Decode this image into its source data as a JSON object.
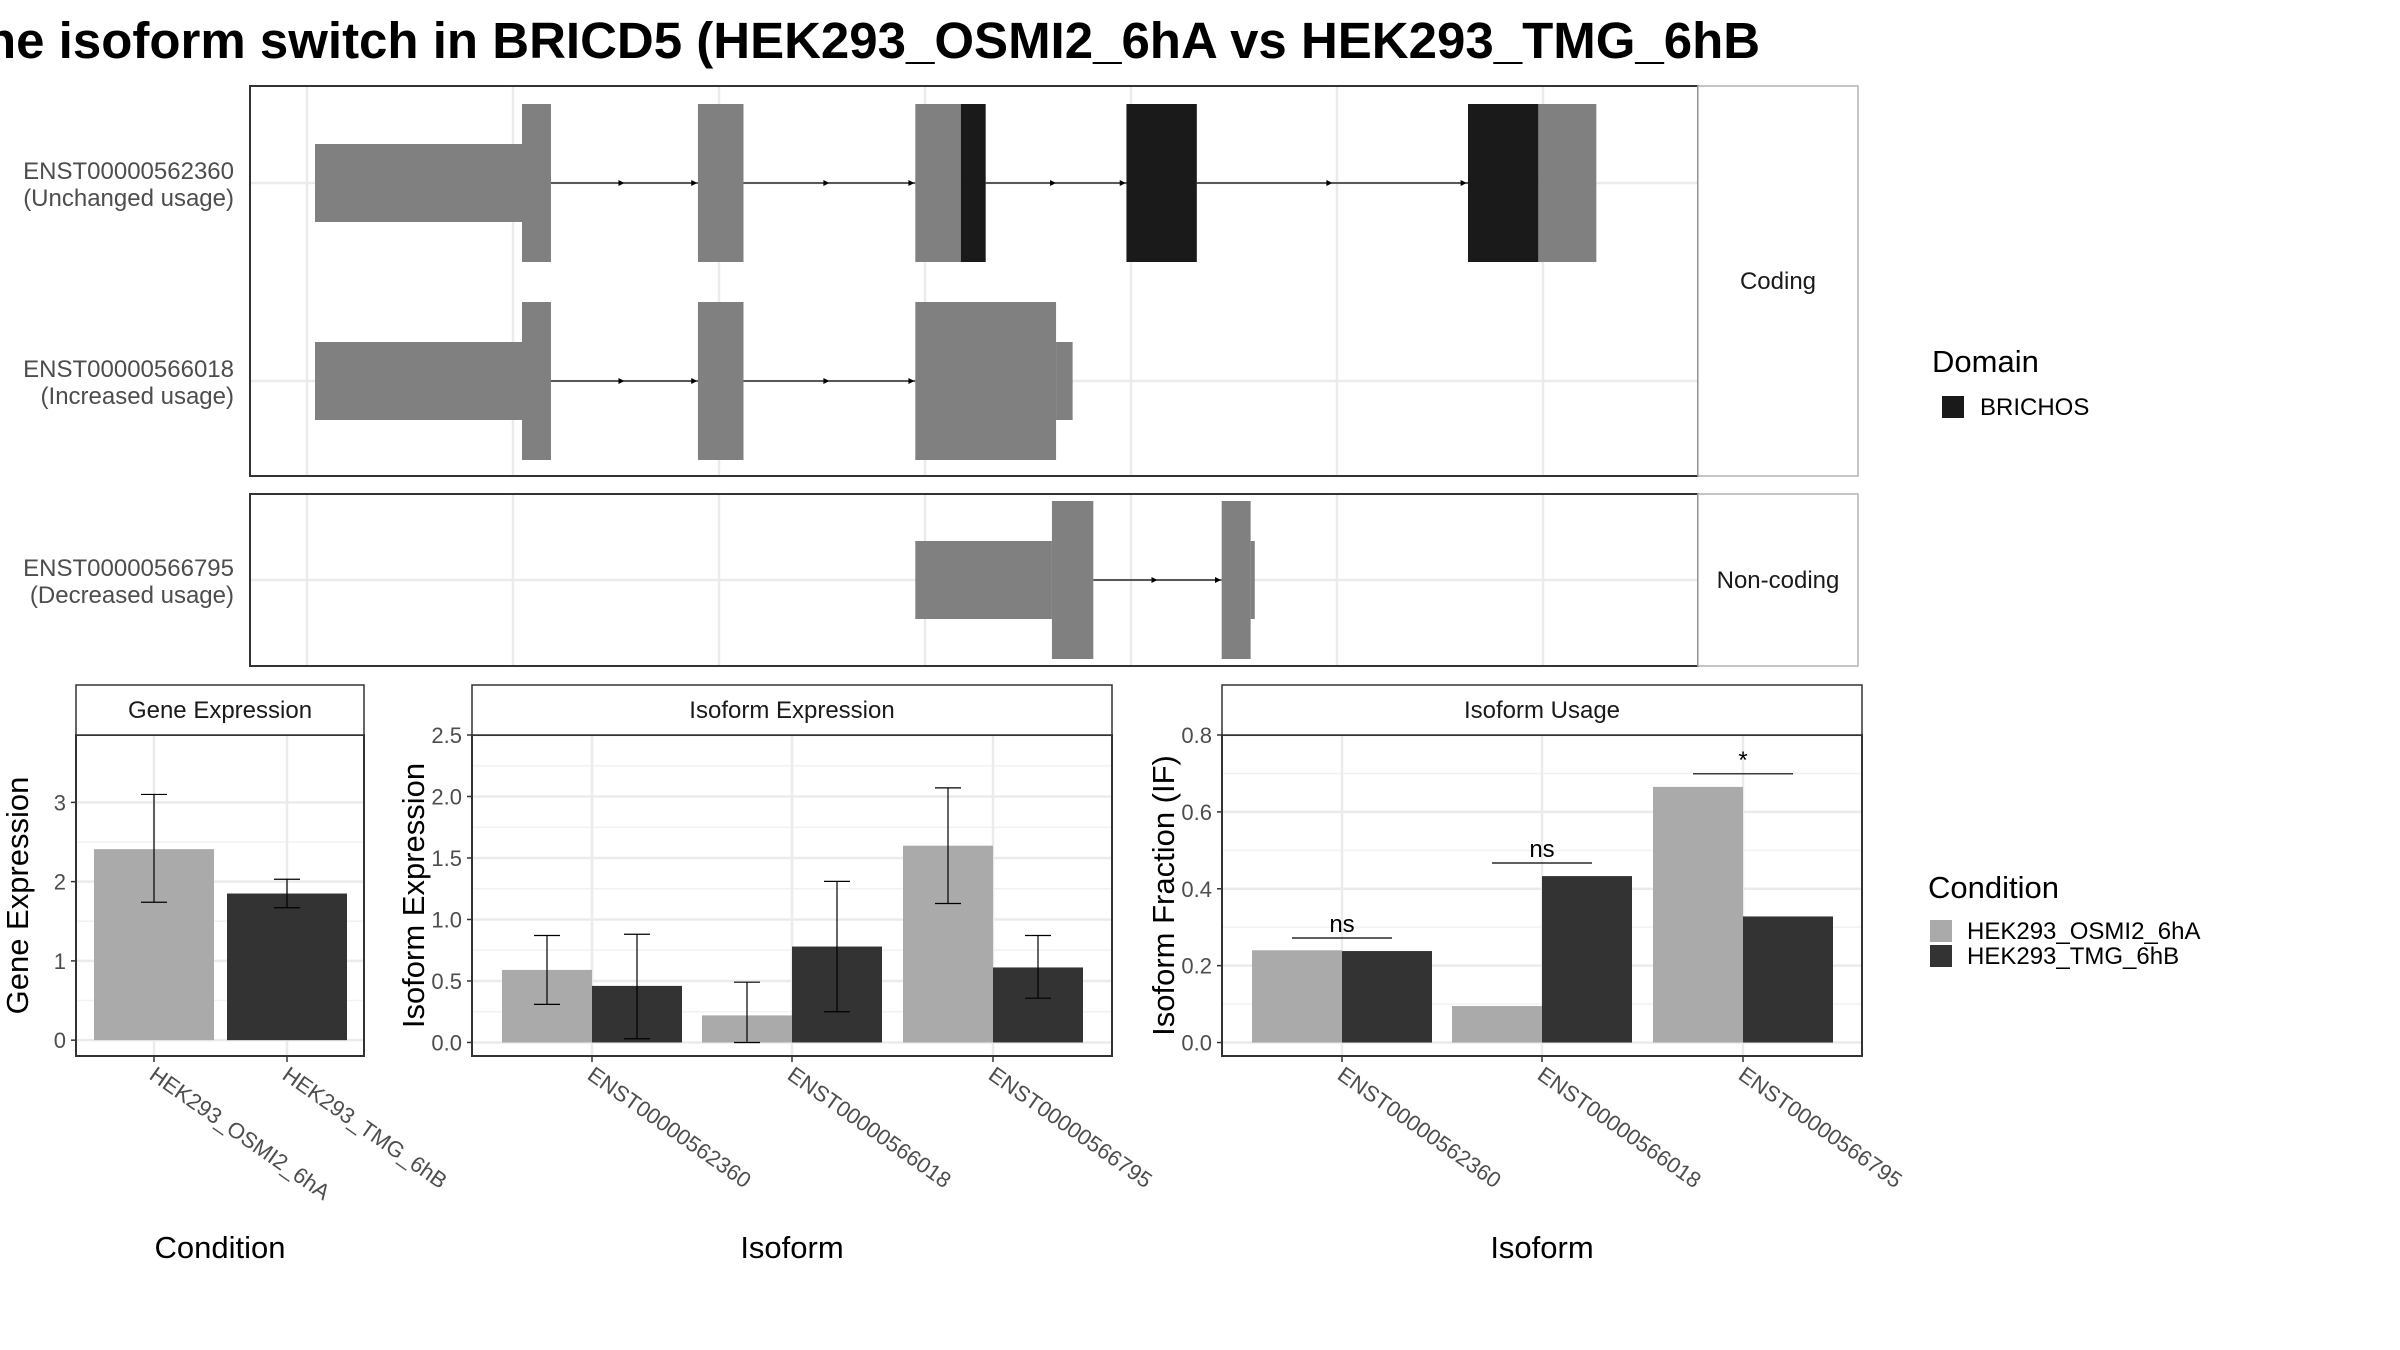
{
  "title": "ne isoform switch in BRICD5 (HEK293_OSMI2_6hA vs HEK293_TMG_6hB",
  "colors": {
    "domain_brichos": "#1a1a1a",
    "exon": "#808080",
    "condition_a": "#aaaaaa",
    "condition_b": "#333333",
    "grid": "#ebebeb",
    "strip_bg": "#ffffff",
    "panel_border": "#333333"
  },
  "transcript_panels": [
    {
      "strip": "Coding",
      "transcripts": [
        {
          "id": "ENST00000562360",
          "usage": "(Unchanged usage)",
          "segments": [
            {
              "start": 0.0,
              "end": 2.0,
              "kind": "utr"
            },
            {
              "start": 2.0,
              "end": 2.28,
              "kind": "cds"
            },
            {
              "start": 3.7,
              "end": 4.14,
              "kind": "cds"
            },
            {
              "start": 5.8,
              "end": 6.24,
              "kind": "cds"
            },
            {
              "start": 6.24,
              "end": 6.48,
              "kind": "cds",
              "domain": "BRICHOS"
            },
            {
              "start": 7.84,
              "end": 8.52,
              "kind": "cds",
              "domain": "BRICHOS"
            },
            {
              "start": 11.14,
              "end": 11.82,
              "kind": "cds",
              "domain": "BRICHOS"
            },
            {
              "start": 11.82,
              "end": 12.38,
              "kind": "cds"
            }
          ]
        },
        {
          "id": "ENST00000566018",
          "usage": "(Increased usage)",
          "segments": [
            {
              "start": 0.0,
              "end": 2.0,
              "kind": "utr"
            },
            {
              "start": 2.0,
              "end": 2.28,
              "kind": "cds"
            },
            {
              "start": 3.7,
              "end": 4.14,
              "kind": "cds"
            },
            {
              "start": 5.8,
              "end": 7.16,
              "kind": "cds"
            },
            {
              "start": 7.16,
              "end": 7.32,
              "kind": "utr"
            }
          ]
        }
      ]
    },
    {
      "strip": "Non-coding",
      "transcripts": [
        {
          "id": "ENST00000566795",
          "usage": "(Decreased usage)",
          "segments": [
            {
              "start": 5.8,
              "end": 7.12,
              "kind": "utr"
            },
            {
              "start": 7.12,
              "end": 7.52,
              "kind": "cds"
            },
            {
              "start": 8.76,
              "end": 9.04,
              "kind": "cds"
            },
            {
              "start": 9.04,
              "end": 9.08,
              "kind": "utr"
            }
          ]
        }
      ]
    }
  ],
  "legend_domain": {
    "title": "Domain",
    "items": [
      {
        "label": "BRICHOS"
      }
    ]
  },
  "legend_condition": {
    "title": "Condition",
    "items": [
      {
        "label": "HEK293_OSMI2_6hA"
      },
      {
        "label": "HEK293_TMG_6hB"
      }
    ]
  },
  "chart_data": [
    {
      "type": "bar",
      "title": "Gene Expression",
      "xlabel": "Condition",
      "ylabel": "Gene Expression",
      "ylim": [
        -0.2,
        3.85
      ],
      "yticks": [
        "0",
        "1",
        "2",
        "3"
      ],
      "categories": [
        "HEK293_OSMI2_6hA",
        "HEK293_TMG_6hB"
      ],
      "series": [
        {
          "values": [
            2.41,
            1.85
          ],
          "err_low": [
            1.74,
            1.67
          ],
          "err_high": [
            3.1,
            2.03
          ]
        }
      ]
    },
    {
      "type": "bar",
      "title": "Isoform Expression",
      "xlabel": "Isoform",
      "ylabel": "Isoform Expression",
      "ylim": [
        -0.11,
        2.5
      ],
      "yticks": [
        "0.0",
        "0.5",
        "1.0",
        "1.5",
        "2.0",
        "2.5"
      ],
      "categories": [
        "ENST00000562360",
        "ENST00000566018",
        "ENST00000566795"
      ],
      "series": [
        {
          "name": "HEK293_OSMI2_6hA",
          "values": [
            0.59,
            0.22,
            1.6
          ],
          "err_low": [
            0.31,
            0.0,
            1.13
          ],
          "err_high": [
            0.87,
            0.49,
            2.07
          ]
        },
        {
          "name": "HEK293_TMG_6hB",
          "values": [
            0.46,
            0.78,
            0.61
          ],
          "err_low": [
            0.03,
            0.25,
            0.36
          ],
          "err_high": [
            0.88,
            1.31,
            0.87
          ]
        }
      ]
    },
    {
      "type": "bar",
      "title": "Isoform Usage",
      "xlabel": "Isoform",
      "ylabel": "Isoform Fraction (IF)",
      "ylim": [
        -0.035,
        0.8
      ],
      "yticks": [
        "0.0",
        "0.2",
        "0.4",
        "0.6",
        "0.8"
      ],
      "categories": [
        "ENST00000562360",
        "ENST00000566018",
        "ENST00000566795"
      ],
      "series": [
        {
          "name": "HEK293_OSMI2_6hA",
          "values": [
            0.24,
            0.095,
            0.665
          ]
        },
        {
          "name": "HEK293_TMG_6hB",
          "values": [
            0.238,
            0.433,
            0.328
          ]
        }
      ],
      "significance": [
        {
          "label": "ns",
          "y": 0.272
        },
        {
          "label": "ns",
          "y": 0.467
        },
        {
          "label": "*",
          "y": 0.699
        }
      ]
    }
  ]
}
